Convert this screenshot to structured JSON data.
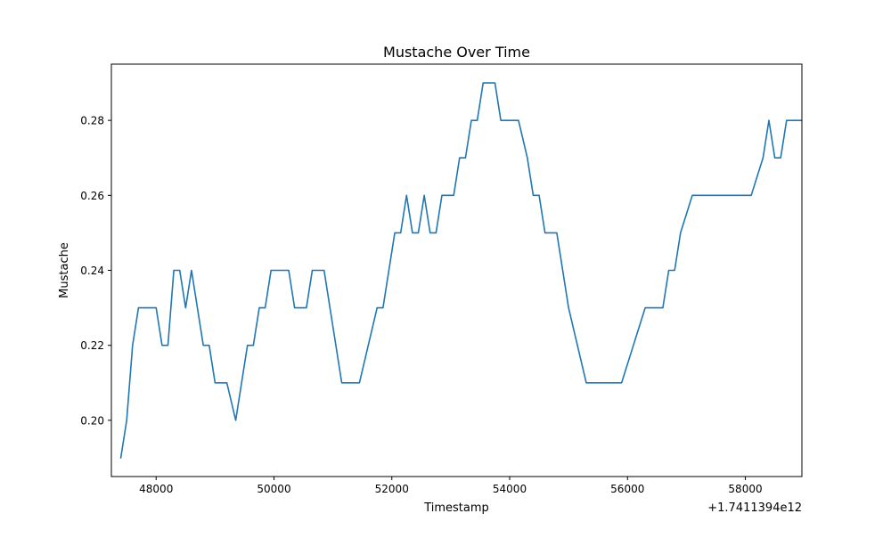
{
  "chart_data": {
    "type": "line",
    "title": "Mustache Over Time",
    "xlabel": "Timestamp",
    "ylabel": "Mustache",
    "x_offset_label": "+1.7411394e12",
    "xlim": [
      47240,
      58960
    ],
    "ylim": [
      0.185,
      0.295
    ],
    "xticks": [
      48000,
      50000,
      52000,
      54000,
      56000,
      58000
    ],
    "yticks": [
      0.2,
      0.22,
      0.24,
      0.26,
      0.28
    ],
    "ytick_labels": [
      "0.20",
      "0.22",
      "0.24",
      "0.26",
      "0.28"
    ],
    "grid": false,
    "legend": "none",
    "line_color": "#1f77b4",
    "series": [
      {
        "x": [
          47400,
          47500,
          47600,
          47700,
          47800,
          47900,
          48000,
          48100,
          48200,
          48300,
          48400,
          48500,
          48600,
          48700,
          48800,
          48900,
          49000,
          49100,
          49200,
          49350,
          49450,
          49550,
          49650,
          49750,
          49850,
          49950,
          50050,
          50150,
          50250,
          50350,
          50450,
          50550,
          50650,
          50750,
          50850,
          50950,
          51050,
          51150,
          51300,
          51450,
          51600,
          51750,
          51850,
          51950,
          52050,
          52150,
          52250,
          52350,
          52450,
          52550,
          52650,
          52750,
          52850,
          52950,
          53050,
          53150,
          53250,
          53350,
          53450,
          53550,
          53650,
          53750,
          53850,
          54000,
          54150,
          54300,
          54400,
          54500,
          54600,
          54700,
          54800,
          54900,
          55000,
          55150,
          55300,
          55500,
          55700,
          55900,
          56100,
          56300,
          56450,
          56600,
          56700,
          56800,
          56900,
          57100,
          57300,
          57500,
          57700,
          57950,
          58100,
          58300,
          58400,
          58500,
          58600,
          58700,
          58950
        ],
        "y": [
          0.19,
          0.2,
          0.22,
          0.23,
          0.23,
          0.23,
          0.23,
          0.22,
          0.22,
          0.24,
          0.24,
          0.23,
          0.24,
          0.23,
          0.22,
          0.22,
          0.21,
          0.21,
          0.21,
          0.2,
          0.21,
          0.22,
          0.22,
          0.23,
          0.23,
          0.24,
          0.24,
          0.24,
          0.24,
          0.23,
          0.23,
          0.23,
          0.24,
          0.24,
          0.24,
          0.23,
          0.22,
          0.21,
          0.21,
          0.21,
          0.22,
          0.23,
          0.23,
          0.24,
          0.25,
          0.25,
          0.26,
          0.25,
          0.25,
          0.26,
          0.25,
          0.25,
          0.26,
          0.26,
          0.26,
          0.27,
          0.27,
          0.28,
          0.28,
          0.29,
          0.29,
          0.29,
          0.28,
          0.28,
          0.28,
          0.27,
          0.26,
          0.26,
          0.25,
          0.25,
          0.25,
          0.24,
          0.23,
          0.22,
          0.21,
          0.21,
          0.21,
          0.21,
          0.22,
          0.23,
          0.23,
          0.23,
          0.24,
          0.24,
          0.25,
          0.26,
          0.26,
          0.26,
          0.26,
          0.26,
          0.26,
          0.27,
          0.28,
          0.27,
          0.27,
          0.28,
          0.28
        ]
      }
    ]
  }
}
